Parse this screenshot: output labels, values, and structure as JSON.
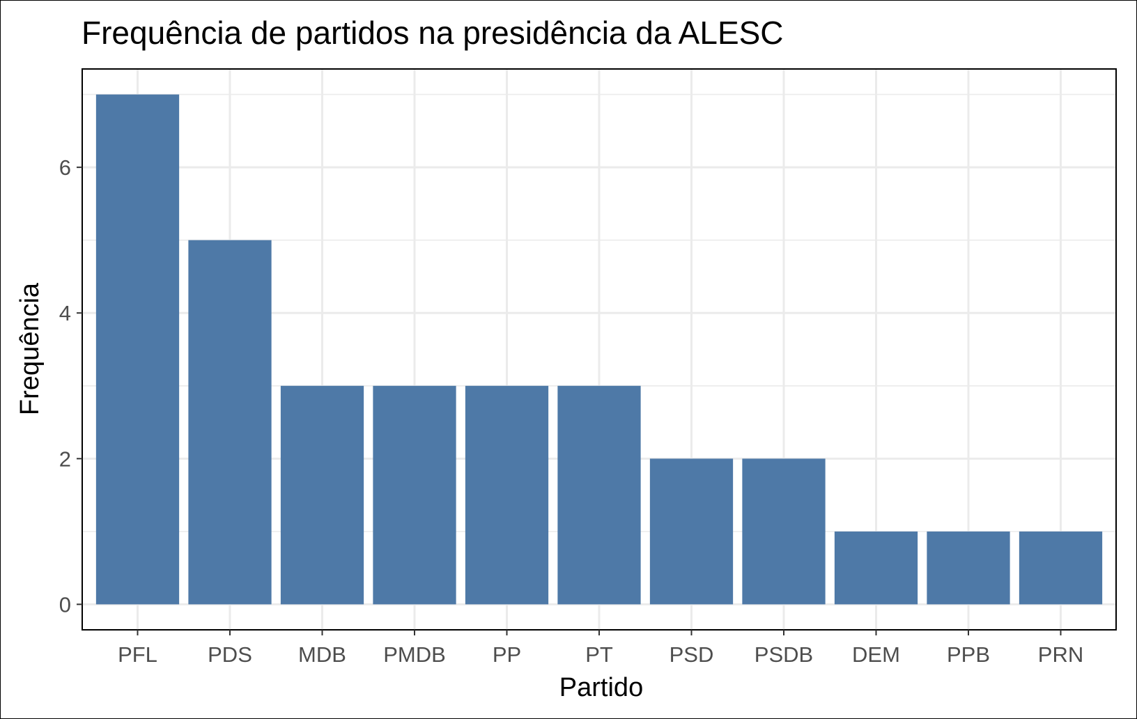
{
  "chart_data": {
    "type": "bar",
    "title": "Frequência de partidos na presidência da ALESC",
    "xlabel": "Partido",
    "ylabel": "Frequência",
    "categories": [
      "PFL",
      "PDS",
      "MDB",
      "PMDB",
      "PP",
      "PT",
      "PSD",
      "PSDB",
      "DEM",
      "PPB",
      "PRN"
    ],
    "values": [
      7,
      5,
      3,
      3,
      3,
      3,
      2,
      2,
      1,
      1,
      1
    ],
    "y_ticks": [
      0,
      2,
      4,
      6
    ],
    "y_tick_labels": [
      "0",
      "2",
      "4",
      "6"
    ],
    "ylim": [
      -0.35,
      7.35
    ],
    "grid": true,
    "legend": "none",
    "bar_color": "#4e79a7"
  }
}
